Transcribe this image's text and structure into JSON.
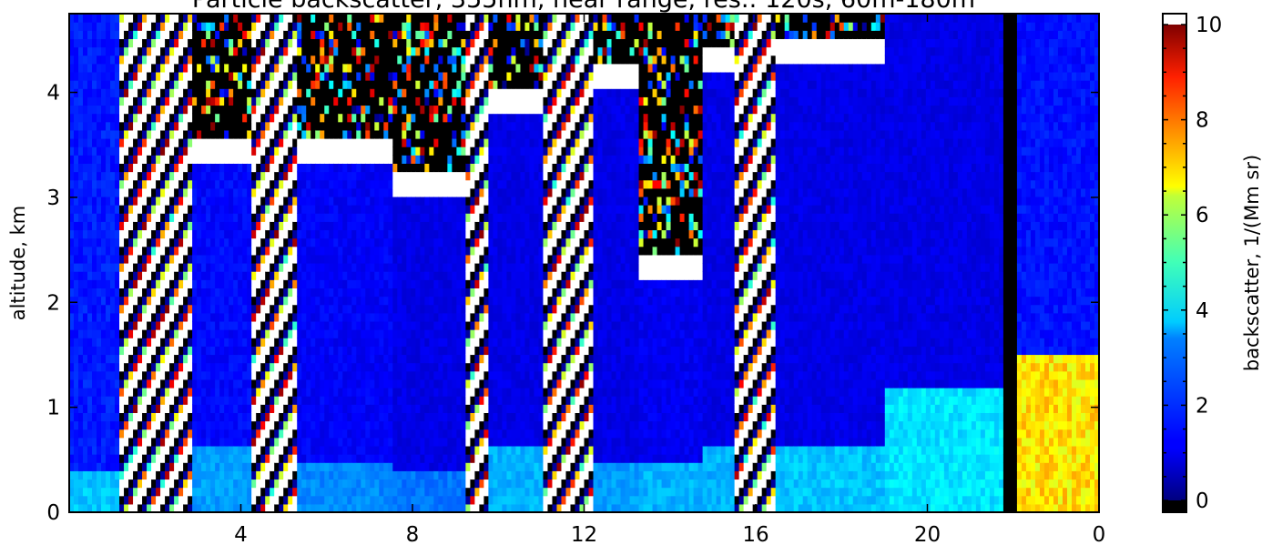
{
  "chart_data": {
    "type": "heatmap",
    "title": "Particle backscatter, 355nm, near range, res.: 120s, 60m-180m",
    "xlabel": "",
    "ylabel": "altitude, km",
    "x_ticks": [
      "4",
      "8",
      "12",
      "16",
      "20",
      "0"
    ],
    "x_tick_values": [
      4,
      8,
      12,
      16,
      20,
      24
    ],
    "xlim": [
      0.0,
      24.0
    ],
    "y_ticks": [
      "0",
      "1",
      "2",
      "3",
      "4"
    ],
    "y_tick_values": [
      0,
      1,
      2,
      3,
      4
    ],
    "ylim": [
      0.0,
      4.75
    ],
    "colorbar": {
      "label": "backscatter, 1/(Mm sr)",
      "ticks": [
        "0",
        "2",
        "4",
        "6",
        "8",
        "10"
      ],
      "tick_values": [
        0,
        2,
        4,
        6,
        8,
        10
      ],
      "range": [
        0,
        10
      ],
      "colormap": "jet with black below range and white above range"
    },
    "x_units": "hours (UTC), wrapping to 0 at 24",
    "segments": [
      {
        "x_start": 0.0,
        "x_end": 1.2,
        "cloud_base_km": null,
        "upper_level": 1.5,
        "boundary_layer_top_km": 0.4,
        "boundary_layer_value": 3.2
      },
      {
        "x_start": 1.2,
        "x_end": 2.9,
        "cloud_base_km": 1.2,
        "upper_level": 9.0,
        "boundary_layer_top_km": 0.5,
        "boundary_layer_value": 2.5
      },
      {
        "x_start": 2.9,
        "x_end": 4.3,
        "cloud_base_km": 3.3,
        "upper_level": 1.3,
        "boundary_layer_top_km": 0.6,
        "boundary_layer_value": 2.8
      },
      {
        "x_start": 4.3,
        "x_end": 5.3,
        "cloud_base_km": 0.0,
        "upper_level": 9.0,
        "boundary_layer_top_km": 0.0,
        "boundary_layer_value": 0
      },
      {
        "x_start": 5.3,
        "x_end": 7.5,
        "cloud_base_km": 3.3,
        "upper_level": 1.2,
        "boundary_layer_top_km": 0.5,
        "boundary_layer_value": 2.6
      },
      {
        "x_start": 7.5,
        "x_end": 9.2,
        "cloud_base_km": 3.0,
        "upper_level": 1.0,
        "boundary_layer_top_km": 0.4,
        "boundary_layer_value": 2.4
      },
      {
        "x_start": 9.2,
        "x_end": 9.8,
        "cloud_base_km": 0.0,
        "upper_level": 9.0,
        "boundary_layer_top_km": 0.0,
        "boundary_layer_value": 0
      },
      {
        "x_start": 9.8,
        "x_end": 11.0,
        "cloud_base_km": 3.8,
        "upper_level": 1.0,
        "boundary_layer_top_km": 0.6,
        "boundary_layer_value": 3.0
      },
      {
        "x_start": 11.0,
        "x_end": 12.2,
        "cloud_base_km": 0.0,
        "upper_level": 9.0,
        "boundary_layer_top_km": 0.0,
        "boundary_layer_value": 0
      },
      {
        "x_start": 12.2,
        "x_end": 13.3,
        "cloud_base_km": 4.0,
        "upper_level": 1.0,
        "boundary_layer_top_km": 0.5,
        "boundary_layer_value": 2.8
      },
      {
        "x_start": 13.3,
        "x_end": 14.8,
        "cloud_base_km": 2.2,
        "upper_level": 1.1,
        "boundary_layer_top_km": 0.5,
        "boundary_layer_value": 3.0
      },
      {
        "x_start": 14.8,
        "x_end": 15.5,
        "cloud_base_km": 4.2,
        "upper_level": 1.0,
        "boundary_layer_top_km": 0.6,
        "boundary_layer_value": 3.0
      },
      {
        "x_start": 15.5,
        "x_end": 16.5,
        "cloud_base_km": 0.0,
        "upper_level": 9.0,
        "boundary_layer_top_km": 0.0,
        "boundary_layer_value": 0
      },
      {
        "x_start": 16.5,
        "x_end": 19.0,
        "cloud_base_km": 4.3,
        "upper_level": 1.0,
        "boundary_layer_top_km": 0.6,
        "boundary_layer_value": 3.2
      },
      {
        "x_start": 19.0,
        "x_end": 21.8,
        "cloud_base_km": null,
        "upper_level": 1.0,
        "boundary_layer_top_km": 1.2,
        "boundary_layer_value": 3.5
      },
      {
        "x_start": 21.8,
        "x_end": 22.1,
        "cloud_base_km": null,
        "upper_level": 0.0,
        "boundary_layer_top_km": 0.0,
        "boundary_layer_value": 0
      },
      {
        "x_start": 22.1,
        "x_end": 24.0,
        "cloud_base_km": null,
        "upper_level": 1.4,
        "boundary_layer_top_km": 1.5,
        "boundary_layer_value": 6.5
      }
    ],
    "grid": false,
    "legend": "colorbar-right"
  }
}
